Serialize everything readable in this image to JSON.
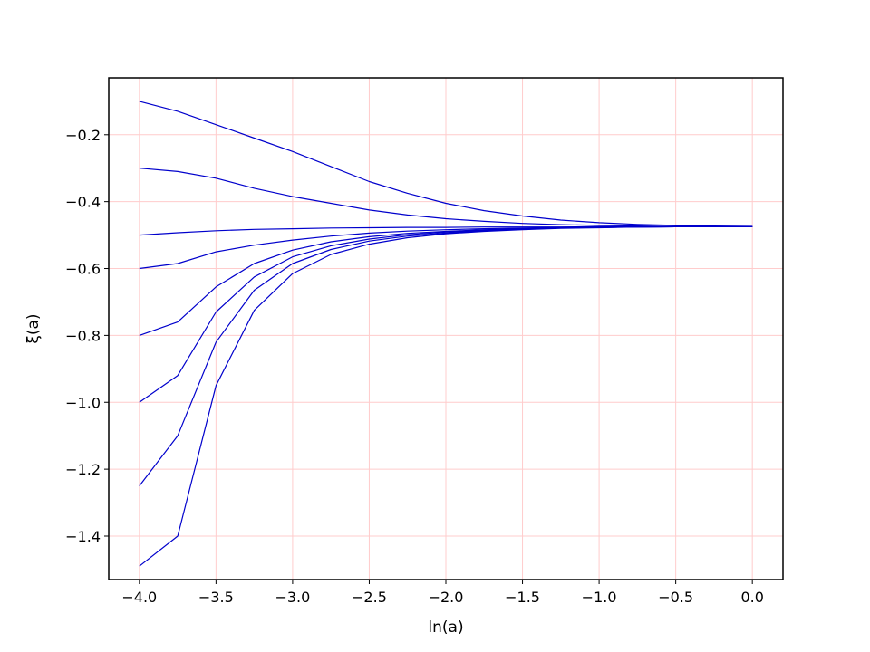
{
  "chart_data": {
    "type": "line",
    "title": "",
    "xlabel": "ln(a)",
    "ylabel": "ξ(a)",
    "xlim": [
      -4.2,
      0.2
    ],
    "ylim": [
      -1.53,
      -0.03
    ],
    "xticks": [
      -4.0,
      -3.5,
      -3.0,
      -2.5,
      -2.0,
      -1.5,
      -1.0,
      -0.5,
      0.0
    ],
    "xtick_labels": [
      "−4.0",
      "−3.5",
      "−3.0",
      "−2.5",
      "−2.0",
      "−1.5",
      "−1.0",
      "−0.5",
      "0.0"
    ],
    "yticks": [
      -0.2,
      -0.4,
      -0.6,
      -0.8,
      -1.0,
      -1.2,
      -1.4
    ],
    "ytick_labels": [
      "−0.2",
      "−0.4",
      "−0.6",
      "−0.8",
      "−1.0",
      "−1.2",
      "−1.4"
    ],
    "grid": true,
    "grid_color": "#ffcccc",
    "line_color": "#0000cc",
    "final_value": -0.475,
    "x": [
      -4.0,
      -3.75,
      -3.5,
      -3.25,
      -3.0,
      -2.75,
      -2.5,
      -2.25,
      -2.0,
      -1.75,
      -1.5,
      -1.25,
      -1.0,
      -0.75,
      -0.5,
      -0.25,
      0.0
    ],
    "series": [
      {
        "values": [
          -0.1,
          -0.13,
          -0.17,
          -0.21,
          -0.25,
          -0.295,
          -0.34,
          -0.375,
          -0.405,
          -0.427,
          -0.443,
          -0.455,
          -0.463,
          -0.468,
          -0.471,
          -0.473,
          -0.474
        ]
      },
      {
        "values": [
          -0.3,
          -0.31,
          -0.33,
          -0.36,
          -0.385,
          -0.405,
          -0.425,
          -0.44,
          -0.451,
          -0.459,
          -0.465,
          -0.469,
          -0.471,
          -0.473,
          -0.474,
          -0.474,
          -0.475
        ]
      },
      {
        "values": [
          -0.5,
          -0.493,
          -0.487,
          -0.483,
          -0.481,
          -0.479,
          -0.478,
          -0.477,
          -0.477,
          -0.476,
          -0.476,
          -0.476,
          -0.475,
          -0.475,
          -0.475,
          -0.475,
          -0.475
        ]
      },
      {
        "values": [
          -0.6,
          -0.585,
          -0.55,
          -0.53,
          -0.515,
          -0.503,
          -0.494,
          -0.488,
          -0.484,
          -0.481,
          -0.479,
          -0.477,
          -0.476,
          -0.476,
          -0.475,
          -0.475,
          -0.475
        ]
      },
      {
        "values": [
          -0.8,
          -0.76,
          -0.655,
          -0.585,
          -0.545,
          -0.52,
          -0.505,
          -0.495,
          -0.489,
          -0.484,
          -0.481,
          -0.478,
          -0.477,
          -0.476,
          -0.475,
          -0.475,
          -0.475
        ]
      },
      {
        "values": [
          -1.0,
          -0.92,
          -0.73,
          -0.625,
          -0.565,
          -0.532,
          -0.512,
          -0.499,
          -0.491,
          -0.486,
          -0.482,
          -0.479,
          -0.477,
          -0.476,
          -0.475,
          -0.475,
          -0.475
        ]
      },
      {
        "values": [
          -1.25,
          -1.1,
          -0.82,
          -0.665,
          -0.585,
          -0.543,
          -0.518,
          -0.503,
          -0.494,
          -0.487,
          -0.483,
          -0.479,
          -0.477,
          -0.476,
          -0.475,
          -0.475,
          -0.475
        ]
      },
      {
        "values": [
          -1.49,
          -1.4,
          -0.95,
          -0.725,
          -0.615,
          -0.558,
          -0.527,
          -0.508,
          -0.496,
          -0.489,
          -0.484,
          -0.48,
          -0.478,
          -0.476,
          -0.475,
          -0.475,
          -0.475
        ]
      }
    ]
  }
}
